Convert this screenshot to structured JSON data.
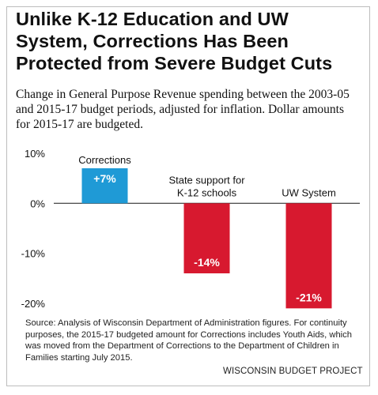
{
  "title_lines": [
    "Unlike K-12 Education and UW",
    "System, Corrections Has Been",
    "Protected from Severe Budget Cuts"
  ],
  "subtitle_lines": [
    "Change in General Purpose Revenue spending between the 2003-05",
    "and 2015-17 budget periods, adjusted for inflation. Dollar amounts",
    "for 2015-17 are budgeted."
  ],
  "chart_data": {
    "type": "bar",
    "categories": [
      [
        "Corrections"
      ],
      [
        "State support for",
        "K-12 schools"
      ],
      [
        "UW System"
      ]
    ],
    "values": [
      7,
      -14,
      -21
    ],
    "value_labels": [
      "+7%",
      "-14%",
      "-21%"
    ],
    "bar_colors": [
      "#1f9ad6",
      "#d7192f",
      "#d7192f"
    ],
    "ylim": [
      -20,
      10
    ],
    "yticks": [
      10,
      0,
      -10,
      -20
    ],
    "ytick_labels": [
      "10%",
      "0%",
      "-10%",
      "-20%"
    ],
    "grid": false,
    "zero_line": true
  },
  "source_note_lines": [
    "Source: Analysis of Wisconsin Department of Administration figures. For continuity",
    "purposes, the 2015-17 budgeted amount for Corrections includes Youth Aids, which",
    "was moved from the Department of Corrections to the Department of Children in",
    "Families starting July 2015."
  ],
  "credit": "WISCONSIN BUDGET PROJECT"
}
